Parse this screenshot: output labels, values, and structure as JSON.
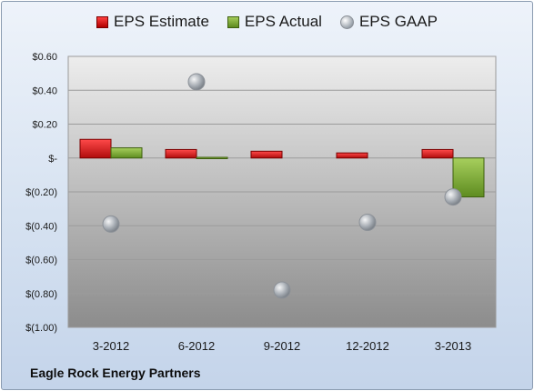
{
  "legend": {
    "estimate_label": "EPS Estimate",
    "actual_label": "EPS Actual",
    "gaap_label": "EPS GAAP"
  },
  "footer": {
    "company": "Eagle Rock Energy Partners"
  },
  "colors": {
    "estimate": "#d62020",
    "actual": "#7aa83a",
    "gaap": "#a8adb3",
    "plot_bg_top": "#e8e8e8",
    "plot_bg_bottom": "#8e8e8e"
  },
  "chart_data": {
    "type": "bar",
    "categories": [
      "3-2012",
      "6-2012",
      "9-2012",
      "12-2012",
      "3-2013"
    ],
    "series": [
      {
        "name": "EPS Estimate",
        "kind": "bar",
        "values": [
          0.11,
          0.05,
          0.04,
          0.03,
          0.05
        ]
      },
      {
        "name": "EPS Actual",
        "kind": "bar",
        "values": [
          0.06,
          0.0,
          null,
          null,
          -0.23
        ]
      },
      {
        "name": "EPS GAAP",
        "kind": "scatter",
        "values": [
          -0.39,
          0.45,
          -0.78,
          -0.38,
          -0.23
        ]
      }
    ],
    "yticks": [
      0.6,
      0.4,
      0.2,
      0,
      -0.2,
      -0.4,
      -0.6,
      -0.8,
      -1.0
    ],
    "ytick_labels": [
      "$0.60",
      "$0.40",
      "$0.20",
      "$-",
      "$(0.20)",
      "$(0.40)",
      "$(0.60)",
      "$(0.80)",
      "$(1.00)"
    ],
    "ylim": [
      -1.0,
      0.6
    ],
    "grid": true,
    "legend_position": "top"
  }
}
